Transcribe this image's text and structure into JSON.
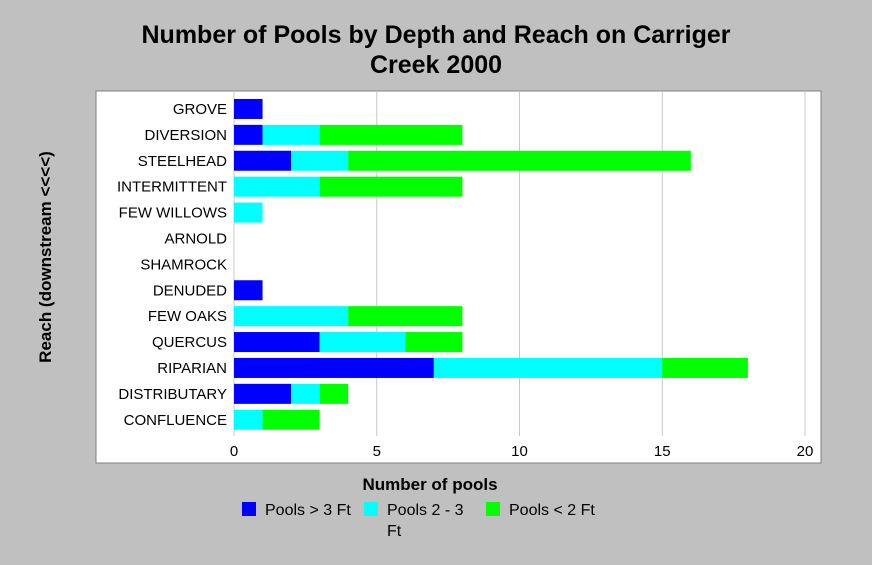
{
  "chart_data": {
    "type": "bar",
    "orientation": "horizontal",
    "stacked": true,
    "title_lines": [
      "Number of Pools by Depth and Reach on Carriger",
      "Creek 2000"
    ],
    "xlabel": "Number of pools",
    "ylabel": "Reach (downstream <<<<)",
    "xlim": [
      0,
      20
    ],
    "xticks": [
      "0",
      "5",
      "10",
      "15",
      "20"
    ],
    "grid": true,
    "legend_position": "bottom",
    "categories": [
      "GROVE",
      "DIVERSION",
      "STEELHEAD",
      "INTERMITTENT",
      "FEW WILLOWS",
      "ARNOLD",
      "SHAMROCK",
      "DENUDED",
      "FEW OAKS",
      "QUERCUS",
      "RIPARIAN",
      "DISTRIBUTARY",
      "CONFLUENCE"
    ],
    "series": [
      {
        "name": "Pools > 3 Ft",
        "color": "#0000ff",
        "values": [
          1,
          1,
          2,
          0,
          0,
          0,
          0,
          1,
          0,
          3,
          7,
          2,
          0
        ]
      },
      {
        "name": "Pools 2 - 3 Ft",
        "color": "#00ffff",
        "values": [
          0,
          2,
          2,
          3,
          1,
          0,
          0,
          0,
          4,
          3,
          8,
          1,
          1
        ]
      },
      {
        "name": "Pools < 2 Ft",
        "color": "#00ff00",
        "values": [
          0,
          5,
          12,
          5,
          0,
          0,
          0,
          0,
          4,
          2,
          3,
          1,
          2
        ]
      }
    ]
  }
}
